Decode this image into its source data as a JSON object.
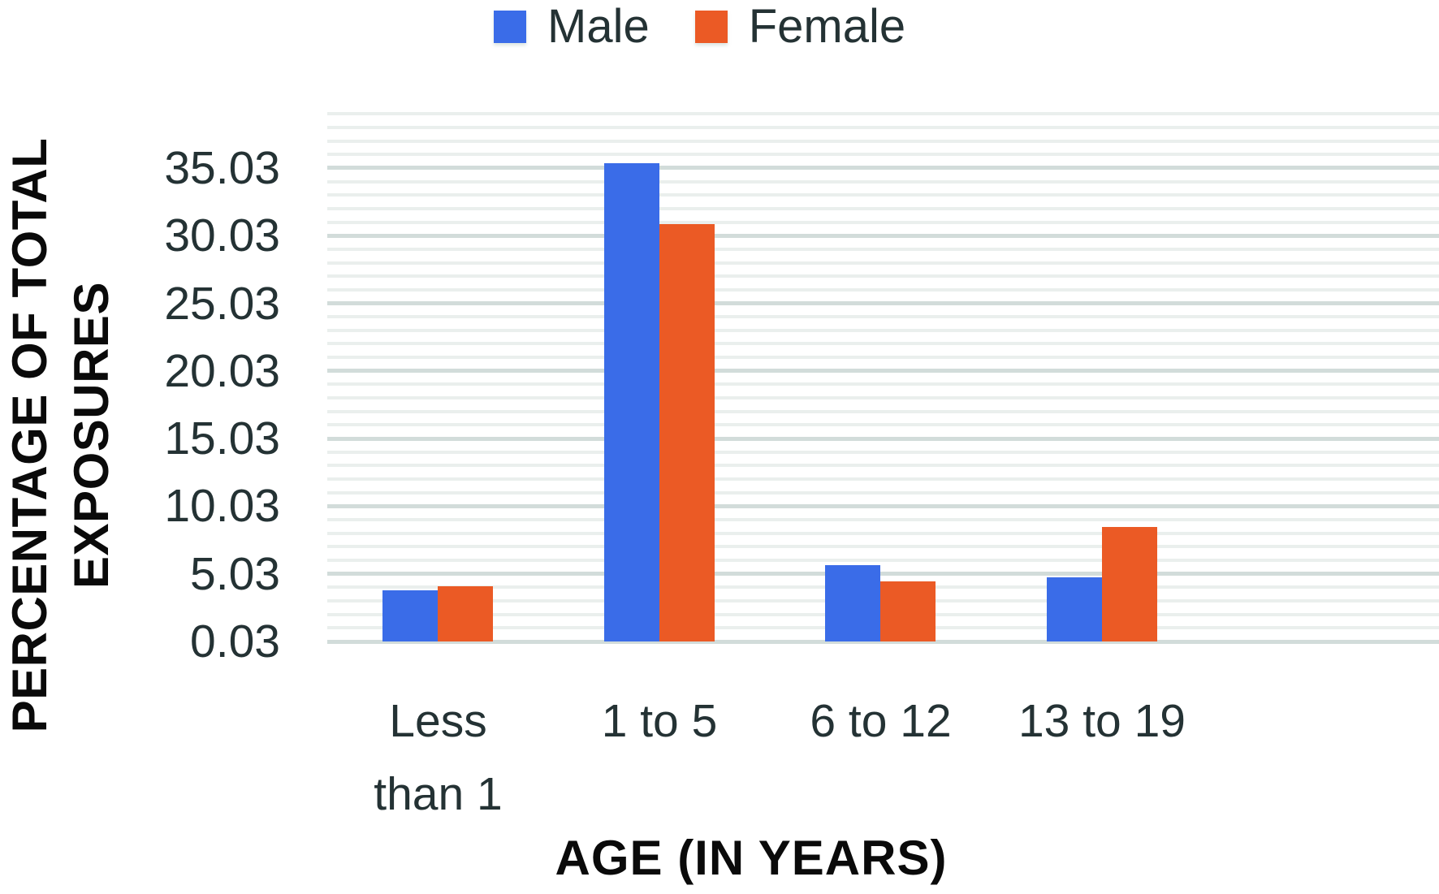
{
  "chart_data": {
    "type": "bar",
    "title": "",
    "categories": [
      "Less than 1",
      "1 to 5",
      "6 to 12",
      "13 to 19"
    ],
    "series": [
      {
        "name": "Male",
        "color": "#3A6CE8",
        "values": [
          3.8,
          35.4,
          5.7,
          4.8
        ]
      },
      {
        "name": "Female",
        "color": "#EB5A25",
        "values": [
          4.1,
          30.9,
          4.5,
          8.5
        ]
      }
    ],
    "xlabel": "AGE (IN YEARS)",
    "ylabel": "PERCENTAGE OF TOTAL EXPOSURES",
    "ylim": [
      0.03,
      39.03
    ],
    "yticks": [
      0.03,
      5.03,
      10.03,
      15.03,
      20.03,
      25.03,
      30.03,
      35.03
    ],
    "minor_grid_step": 1,
    "major_grid_step": 5,
    "grid": "horizontal minor+major, no vertical axis lines",
    "legend_position": "top-center"
  },
  "legend": {
    "items": [
      {
        "label": "Male",
        "color": "#3A6CE8"
      },
      {
        "label": "Female",
        "color": "#EB5A25"
      }
    ]
  },
  "y_axis": {
    "title_lines": [
      "PERCENTAGE OF TOTAL",
      "EXPOSURES"
    ],
    "tick_labels": [
      "35.03",
      "30.03",
      "25.03",
      "20.03",
      "15.03",
      "10.03",
      "5.03",
      "0.03"
    ]
  },
  "x_axis": {
    "title": "AGE (IN YEARS)",
    "category_lines": [
      [
        "Less",
        "than 1"
      ],
      [
        "1 to 5"
      ],
      [
        "6 to 12"
      ],
      [
        "13 to 19"
      ]
    ]
  },
  "colors": {
    "male_bar": "#3A6CE8",
    "female_bar": "#EB5A25",
    "minor_gridline": "#EAEFED",
    "major_gridline": "#D2DCDA",
    "axis_text": "#243234",
    "title_text": "#0a0a0a"
  }
}
